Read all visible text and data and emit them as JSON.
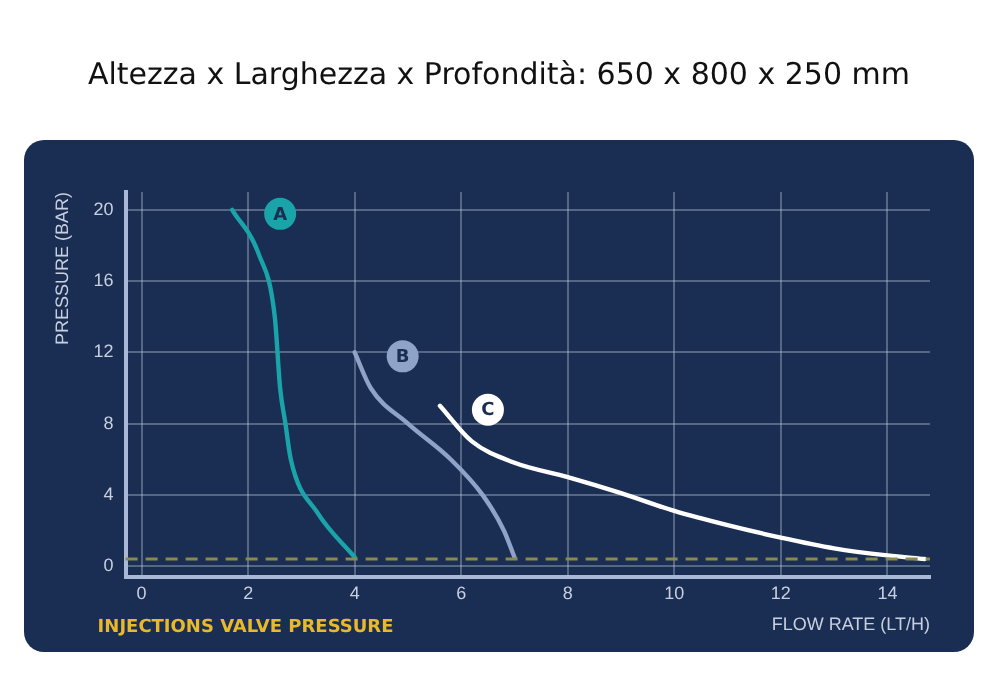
{
  "chart_data": {
    "type": "line",
    "title": "Altezza x Larghezza x Profondità: 650 x 800 x 250 mm",
    "xlabel": "FLOW RATE (LT/H)",
    "ylabel": "PRESSURE (BAR)",
    "xlim": [
      -0.3,
      14.8
    ],
    "xticks": [
      0,
      2,
      4,
      6,
      8,
      10,
      12,
      14
    ],
    "ylim": [
      -0.6,
      21
    ],
    "yticks": [
      0,
      4,
      8,
      12,
      16,
      20
    ],
    "grid": true,
    "legend": false,
    "marker": "none",
    "line_style": "solid",
    "series": [
      {
        "name": "A",
        "color": "#1aa3a8",
        "x": [
          1.7,
          2.2,
          2.5,
          2.6,
          2.7,
          2.8,
          3.3,
          4.0
        ],
        "values": [
          20,
          17.5,
          14,
          10,
          8,
          6,
          3,
          0.5
        ]
      },
      {
        "name": "B",
        "color": "#8fa3c8",
        "x": [
          4,
          4.3,
          5,
          5.8,
          6.4,
          6.8,
          7
        ],
        "values": [
          12,
          10,
          8,
          6,
          4,
          2,
          0.5
        ]
      },
      {
        "name": "C",
        "color": "#ffffff",
        "x": [
          5.6,
          6.2,
          7,
          8,
          9,
          10,
          11,
          12,
          13,
          14,
          14.7
        ],
        "values": [
          9,
          7,
          5.8,
          5,
          4.1,
          3.1,
          2.3,
          1.6,
          1,
          0.6,
          0.4
        ]
      }
    ],
    "annotations": [
      "INJECTIONS VALVE PRESSURE"
    ],
    "ref_lines": [
      {
        "axis": "y",
        "value": 0.4,
        "color": "#8a8a50",
        "line_style": "dashed"
      }
    ]
  }
}
